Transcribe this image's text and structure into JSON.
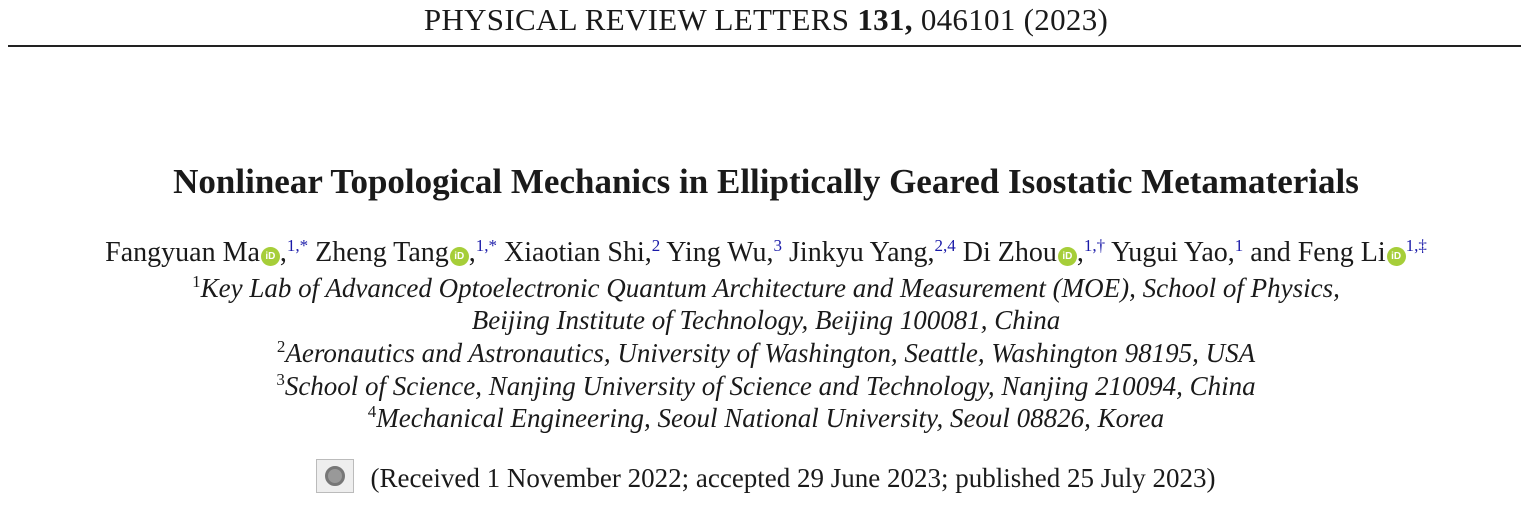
{
  "journal": {
    "name": "PHYSICAL REVIEW LETTERS",
    "volume": "131,",
    "article": "046101 (2023)"
  },
  "title": "Nonlinear Topological Mechanics in Elliptically Geared Isostatic Metamaterials",
  "authors": [
    {
      "name": "Fangyuan Ma",
      "orcid": true,
      "sup": "1,*",
      "sep": ","
    },
    {
      "name": "Zheng Tang",
      "orcid": true,
      "sup": "1,*",
      "sep": ","
    },
    {
      "name": "Xiaotian Shi",
      "orcid": false,
      "sup": "2",
      "sep": ","
    },
    {
      "name": "Ying Wu",
      "orcid": false,
      "sup": "3",
      "sep": ","
    },
    {
      "name": "Jinkyu Yang",
      "orcid": false,
      "sup": "2,4",
      "sep": ","
    },
    {
      "name": "Di Zhou",
      "orcid": true,
      "sup": "1,†",
      "sep": ","
    },
    {
      "name": "Yugui Yao",
      "orcid": false,
      "sup": "1",
      "sep": ", and"
    },
    {
      "name": "Feng Li",
      "orcid": true,
      "sup": "1,‡",
      "sep": ""
    }
  ],
  "affiliations": [
    {
      "num": "1",
      "line1": "Key Lab of Advanced Optoelectronic Quantum Architecture and Measurement (MOE), School of Physics,",
      "line2": "Beijing Institute of Technology, Beijing 100081, China"
    },
    {
      "num": "2",
      "line1": "Aeronautics and Astronautics, University of Washington, Seattle, Washington 98195, USA"
    },
    {
      "num": "3",
      "line1": "School of Science, Nanjing University of Science and Technology, Nanjing 210094, China"
    },
    {
      "num": "4",
      "line1": "Mechanical Engineering, Seoul National University, Seoul 08826, Korea"
    }
  ],
  "dates": "(Received 1 November 2022; accepted 29 June 2023; published 25 July 2023)",
  "icons": {
    "orcid": "orcid-icon",
    "crossmark": "crossmark-icon"
  },
  "colors": {
    "orcid": "#a6ce39",
    "links": "#1a1aa8"
  }
}
